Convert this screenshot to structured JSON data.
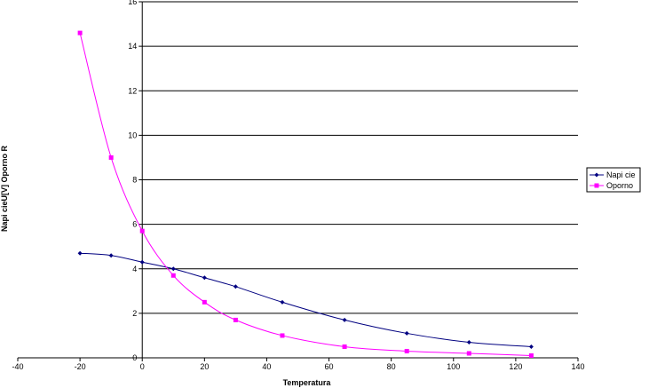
{
  "chart_data": {
    "type": "line",
    "xlabel": "Temperatura",
    "ylabel": "Napi cieU[V] Oporno  R",
    "xlim": [
      -40,
      140
    ],
    "ylim": [
      0,
      16
    ],
    "x_ticks": [
      -40,
      -20,
      0,
      20,
      40,
      60,
      80,
      100,
      120,
      140
    ],
    "y_ticks": [
      0,
      2,
      4,
      6,
      8,
      10,
      12,
      14,
      16
    ],
    "grid": "horizontal",
    "legend_position": "right",
    "series": [
      {
        "name": "Napi cie",
        "color": "#000080",
        "marker": "diamond",
        "x": [
          -20,
          -10,
          0,
          10,
          20,
          30,
          45,
          65,
          85,
          105,
          125
        ],
        "y": [
          4.7,
          4.6,
          4.3,
          4.0,
          3.6,
          3.2,
          2.5,
          1.7,
          1.1,
          0.7,
          0.5
        ]
      },
      {
        "name": "Oporno",
        "color": "#ff00ff",
        "marker": "square",
        "x": [
          -20,
          -10,
          0,
          10,
          20,
          30,
          45,
          65,
          85,
          105,
          125
        ],
        "y": [
          14.6,
          9.0,
          5.7,
          3.7,
          2.5,
          1.7,
          1.0,
          0.5,
          0.3,
          0.2,
          0.1
        ]
      }
    ]
  }
}
